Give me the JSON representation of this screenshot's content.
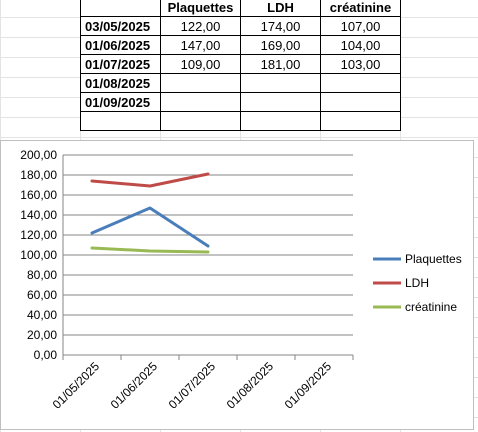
{
  "table": {
    "headers": [
      "",
      "Plaquettes",
      "LDH",
      "créatinine"
    ],
    "rows": [
      {
        "date": "03/05/2025",
        "plaquettes": "122,00",
        "ldh": "174,00",
        "creatinine": "107,00"
      },
      {
        "date": "01/06/2025",
        "plaquettes": "147,00",
        "ldh": "169,00",
        "creatinine": "104,00"
      },
      {
        "date": "01/07/2025",
        "plaquettes": "109,00",
        "ldh": "181,00",
        "creatinine": "103,00"
      },
      {
        "date": "01/08/2025",
        "plaquettes": "",
        "ldh": "",
        "creatinine": ""
      },
      {
        "date": "01/09/2025",
        "plaquettes": "",
        "ldh": "",
        "creatinine": ""
      },
      {
        "date": "",
        "plaquettes": "",
        "ldh": "",
        "creatinine": ""
      }
    ]
  },
  "chart_data": {
    "type": "line",
    "categories": [
      "01/05/2025",
      "01/06/2025",
      "01/07/2025",
      "01/08/2025",
      "01/09/2025"
    ],
    "series": [
      {
        "name": "Plaquettes",
        "color": "#4a7ebb",
        "values": [
          122,
          147,
          109,
          null,
          null
        ]
      },
      {
        "name": "LDH",
        "color": "#be4b48",
        "values": [
          174,
          169,
          181,
          null,
          null
        ]
      },
      {
        "name": "créatinine",
        "color": "#98b954",
        "values": [
          107,
          104,
          103,
          null,
          null
        ]
      }
    ],
    "ylim": [
      0,
      200
    ],
    "ytick_step": 20,
    "ytick_labels": [
      "0,00",
      "20,00",
      "40,00",
      "60,00",
      "80,00",
      "100,00",
      "120,00",
      "140,00",
      "160,00",
      "180,00",
      "200,00"
    ],
    "grid": true,
    "legend": "right",
    "title": "",
    "xlabel": "",
    "ylabel": ""
  }
}
